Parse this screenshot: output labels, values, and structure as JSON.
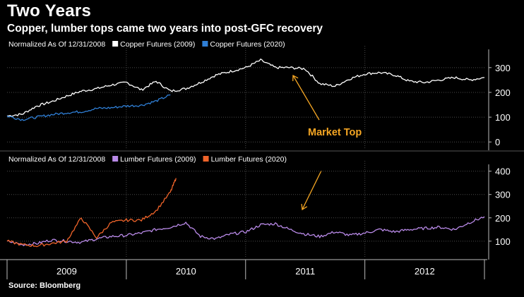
{
  "title": "Two Years",
  "subtitle": "Copper, lumber tops came two years into post-GFC recovery",
  "source": "Source: Bloomberg",
  "colors": {
    "copper_2009": "#ffffff",
    "copper_2020": "#2f7fd6",
    "lumber_2009": "#b98ae8",
    "lumber_2020": "#f0642a",
    "annotation": "#f5a623",
    "grid": "#4a4a4a"
  },
  "chart_data": [
    {
      "type": "line",
      "panel": "copper",
      "legend_prefix": "Normalized As Of 12/31/2008",
      "legend_placement": "top-left",
      "x_axis": "date",
      "x_ticks": [
        "2009",
        "2010",
        "2011",
        "2012"
      ],
      "y_ticks": [
        0,
        100,
        200,
        300
      ],
      "ylim": [
        -25,
        365
      ],
      "grid": true,
      "annotation": "Market Top",
      "series": [
        {
          "name": "Copper Futures (2009)",
          "color_key": "copper_2009",
          "x": [
            "2008-12-31",
            "2009-02-15",
            "2009-04-01",
            "2009-05-15",
            "2009-07-01",
            "2009-08-15",
            "2009-10-01",
            "2009-11-15",
            "2010-01-01",
            "2010-02-15",
            "2010-04-01",
            "2010-05-15",
            "2010-07-01",
            "2010-08-15",
            "2010-10-01",
            "2010-11-15",
            "2011-01-01",
            "2011-02-15",
            "2011-04-01",
            "2011-05-15",
            "2011-07-01",
            "2011-08-15",
            "2011-10-01",
            "2011-11-15",
            "2012-01-01",
            "2012-02-15",
            "2012-04-01",
            "2012-05-15",
            "2012-07-01",
            "2012-08-15",
            "2012-10-01",
            "2012-11-15",
            "2012-12-31"
          ],
          "y": [
            105,
            112,
            145,
            162,
            185,
            205,
            215,
            230,
            240,
            210,
            245,
            205,
            215,
            240,
            270,
            285,
            300,
            330,
            300,
            300,
            295,
            235,
            225,
            255,
            275,
            280,
            270,
            245,
            240,
            250,
            260,
            250,
            260
          ]
        },
        {
          "name": "Copper Futures (2020)",
          "color_key": "copper_2020",
          "x": [
            "2008-12-31",
            "2009-02-15",
            "2009-04-01",
            "2009-05-15",
            "2009-07-01",
            "2009-08-15",
            "2009-10-01",
            "2009-11-15",
            "2009-12-31",
            "2010-02-15",
            "2010-04-01",
            "2010-05-15"
          ],
          "y": [
            105,
            90,
            100,
            110,
            118,
            122,
            135,
            138,
            145,
            148,
            165,
            190
          ]
        }
      ]
    },
    {
      "type": "line",
      "panel": "lumber",
      "legend_prefix": "Normalized As Of 12/31/2008",
      "legend_placement": "top-left",
      "x_axis": "date",
      "x_ticks": [
        "2009",
        "2010",
        "2011",
        "2012"
      ],
      "y_ticks": [
        100,
        200,
        300,
        400
      ],
      "ylim": [
        30,
        420
      ],
      "grid": true,
      "series": [
        {
          "name": "Lumber Futures (2009)",
          "color_key": "lumber_2009",
          "x": [
            "2008-12-31",
            "2009-02-15",
            "2009-04-01",
            "2009-05-15",
            "2009-07-01",
            "2009-08-15",
            "2009-10-01",
            "2009-11-15",
            "2010-01-01",
            "2010-02-15",
            "2010-04-01",
            "2010-05-15",
            "2010-07-01",
            "2010-08-15",
            "2010-10-01",
            "2010-11-15",
            "2011-01-01",
            "2011-02-15",
            "2011-04-01",
            "2011-05-15",
            "2011-07-01",
            "2011-08-15",
            "2011-10-01",
            "2011-11-15",
            "2012-01-01",
            "2012-02-15",
            "2012-04-01",
            "2012-05-15",
            "2012-07-01",
            "2012-08-15",
            "2012-10-01",
            "2012-11-15",
            "2012-12-31"
          ],
          "y": [
            100,
            85,
            90,
            105,
            100,
            95,
            110,
            120,
            125,
            135,
            150,
            160,
            180,
            120,
            110,
            130,
            140,
            170,
            175,
            150,
            130,
            120,
            140,
            125,
            135,
            150,
            140,
            150,
            155,
            160,
            150,
            180,
            205
          ]
        },
        {
          "name": "Lumber Futures (2020)",
          "color_key": "lumber_2020",
          "x": [
            "2008-12-31",
            "2009-02-15",
            "2009-04-01",
            "2009-05-15",
            "2009-07-01",
            "2009-08-15",
            "2009-10-01",
            "2009-11-15",
            "2009-12-31",
            "2010-02-15",
            "2010-04-01",
            "2010-05-15",
            "2010-06-01"
          ],
          "y": [
            100,
            85,
            80,
            90,
            100,
            200,
            115,
            180,
            190,
            190,
            230,
            310,
            370
          ]
        }
      ]
    }
  ]
}
